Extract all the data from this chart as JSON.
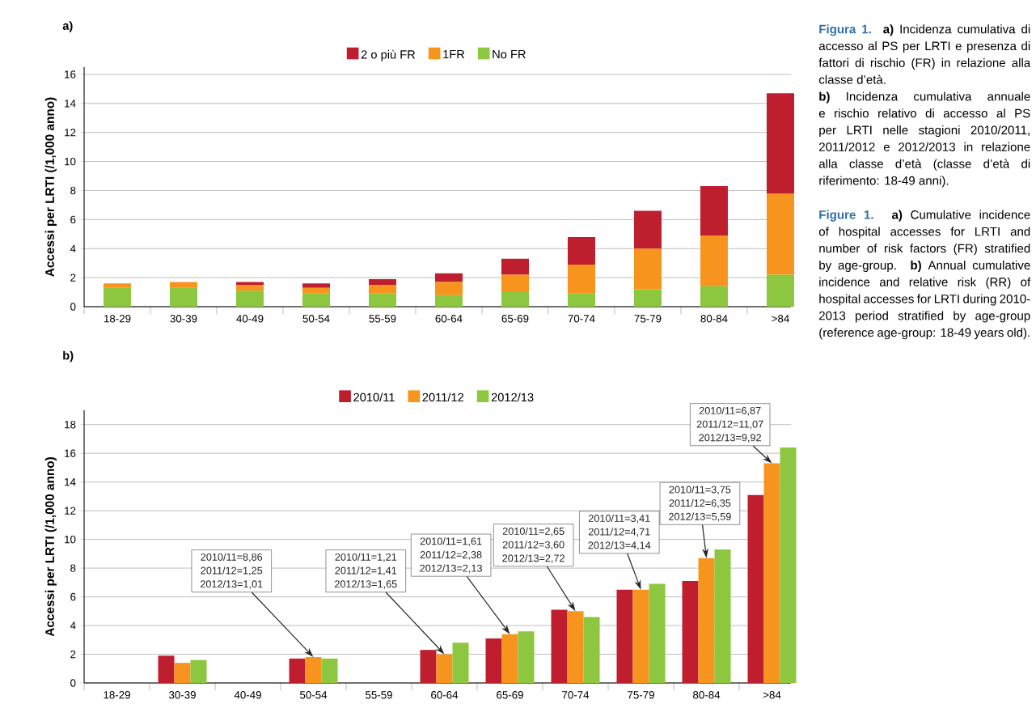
{
  "chart_data": [
    {
      "type": "bar",
      "title": "a)",
      "ylabel": "Accessi per LRTI (/1,000 anno)",
      "stacked": true,
      "categories": [
        "18-29",
        "30-39",
        "40-49",
        "50-54",
        "55-59",
        "60-64",
        "65-69",
        "70-74",
        "75-79",
        "80-84",
        ">84"
      ],
      "series": [
        {
          "name": "No FR",
          "color": "#8dc63f",
          "values": [
            1.3,
            1.3,
            1.1,
            0.9,
            0.9,
            0.8,
            1.0,
            0.9,
            1.2,
            1.4,
            2.2
          ]
        },
        {
          "name": "1FR",
          "color": "#f7941d",
          "values": [
            0.3,
            0.4,
            0.4,
            0.4,
            0.6,
            0.9,
            1.2,
            2.0,
            2.8,
            3.5,
            5.6
          ]
        },
        {
          "name": "2 o più FR",
          "color": "#be1e2d",
          "values": [
            0,
            0,
            0.2,
            0.3,
            0.4,
            0.6,
            1.1,
            1.9,
            2.6,
            3.4,
            6.9
          ]
        }
      ],
      "ylim": [
        0,
        16.5
      ],
      "yticks": [
        0,
        2,
        4,
        6,
        8,
        10,
        12,
        14,
        16
      ],
      "grid": "y",
      "legend": "top",
      "annotations": [
        "Figura 1.",
        "**a)** Incidenza cumulativa di accesso al PS per LRTI e presenza di fattori di rischio (FR) in relazione alla classe d’età.",
        "**b)** Incidenza cumulativa annuale e rischio relativo di accesso al PS per LRTI nelle stagioni 2010/2011, 2011/2012 e 2012/2013 in relazione alla classe d’età (classe d’età di riferimento: 18-49 anni).",
        "Figure 1.",
        "**a)** Cumulative incidence of hospital accesses for LRTI and number of risk factors (FR) stratified by age-group. **b)** Annual cumulative incidence and relative risk (RR) of hospital accesses for LRTI during 2010-2013 period stratified by age-group (reference age-group: 18-49 years old)."
      ]
    },
    {
      "type": "bar",
      "title": "b)",
      "ylabel": "Accessi per LRTI (/1,000 anno)",
      "categories": [
        "18-29",
        "30-39",
        "40-49",
        "50-54",
        "55-59",
        "60-64",
        "65-69",
        "70-74",
        "75-79",
        "80-84",
        ">84"
      ],
      "series": [
        {
          "name": "2010/11",
          "color": "#be1e2d",
          "values": [
            null,
            1.9,
            null,
            1.7,
            null,
            2.3,
            3.1,
            5.1,
            6.5,
            7.1,
            13.1
          ]
        },
        {
          "name": "2011/12",
          "color": "#f7941d",
          "values": [
            null,
            1.4,
            null,
            1.8,
            null,
            2.0,
            3.4,
            5.0,
            6.5,
            8.7,
            15.3
          ]
        },
        {
          "name": "2012/13",
          "color": "#8dc63f",
          "values": [
            null,
            1.6,
            null,
            1.7,
            null,
            2.8,
            3.6,
            4.6,
            6.9,
            9.3,
            16.4
          ]
        }
      ],
      "ylim": [
        0,
        19
      ],
      "yticks": [
        0,
        2,
        4,
        6,
        8,
        10,
        12,
        14,
        16,
        18
      ],
      "grid": "y",
      "legend": "top",
      "annotations": [
        {
          "text": "2010/11=8,86 2011/12=1,25 2012/13=1,01",
          "x": "50-54",
          "y": 1.8
        },
        {
          "text": "2010/11=1,21 2011/12=1,41 2012/13=1,65",
          "x": "60-64",
          "y": 2.0
        },
        {
          "text": "2010/11=1,61 2011/12=2,38 2012/13=2,13",
          "x": "65-69",
          "y": 3.4
        },
        {
          "text": "2010/11=2,65 2011/12=3,60 2012/13=2,72",
          "x": "70-74",
          "y": 5.0
        },
        {
          "text": "2010/11=3,41 2011/12=4,71 2012/13=4,14",
          "x": "75-79",
          "y": 6.5
        },
        {
          "text": "2010/11=3,75 2011/12=6,35 2012/13=5,59",
          "x": "80-84",
          "y": 8.7
        },
        {
          "text": "2010/11=6,87 2011/12=11,07 2012/13=9,92",
          "x": ">84",
          "y": 15.3
        }
      ]
    }
  ]
}
